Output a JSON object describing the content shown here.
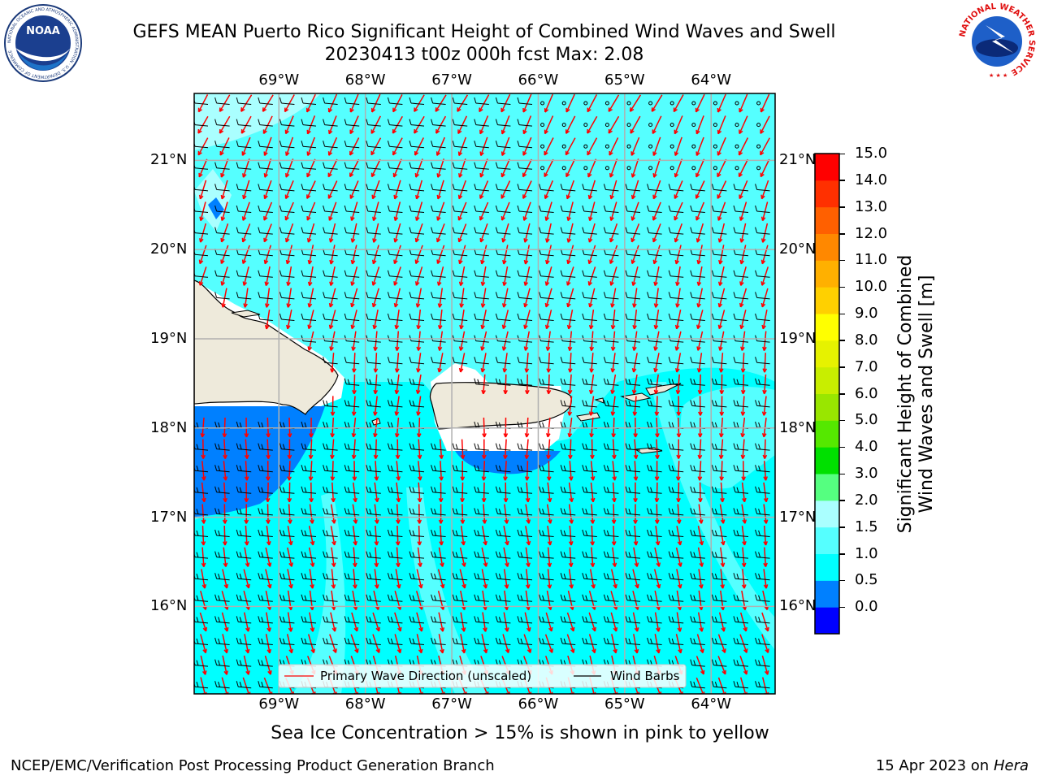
{
  "header": {
    "title_line1": "GEFS MEAN Puerto Rico Significant Height of Combined Wind Waves and Swell",
    "title_line2": "20230413 t00z 000h fcst   Max: 2.08"
  },
  "logos": {
    "noaa_text": "NOAA",
    "noaa_ring_text": "NATIONAL OCEANIC AND ATMOSPHERIC ADMINISTRATION · U.S. DEPARTMENT OF COMMERCE",
    "nws_ring_text": "NATIONAL WEATHER SERVICE"
  },
  "map": {
    "lon_labels": [
      "69°W",
      "68°W",
      "67°W",
      "66°W",
      "65°W",
      "64°W"
    ],
    "lat_labels": [
      "21°N",
      "20°N",
      "19°N",
      "18°N",
      "17°N",
      "16°N"
    ],
    "lon_range": [
      -69.98,
      -63.26
    ],
    "lat_range": [
      15.02,
      21.75
    ],
    "background_range_m": "1.5-2.0",
    "wind_barb_color": "#000000",
    "wave_arrow_color": "#ff0000"
  },
  "legend": {
    "primary_wave": "Primary Wave Direction (unscaled)",
    "wind_barbs": "Wind Barbs"
  },
  "colorbar": {
    "label_line1": "Significant Height of Combined",
    "label_line2": "Wind Waves and Swell [m]",
    "ticks": [
      "15.0",
      "14.0",
      "13.0",
      "12.0",
      "11.0",
      "10.0",
      "9.0",
      "8.0",
      "7.0",
      "6.0",
      "5.0",
      "4.0",
      "3.0",
      "2.0",
      "1.5",
      "1.0",
      "0.5",
      "0.0"
    ],
    "colors": [
      "#0000ff",
      "#0080ff",
      "#00ffff",
      "#55ffff",
      "#aaffff",
      "#55ff80",
      "#00e000",
      "#55e800",
      "#99e600",
      "#c8ee00",
      "#e6f200",
      "#ffff00",
      "#ffd000",
      "#ffb000",
      "#ff8800",
      "#ff6000",
      "#ff3000",
      "#ff0000"
    ]
  },
  "notes": {
    "sea_ice": "Sea Ice Concentration > 15% is shown in pink to yellow"
  },
  "footer": {
    "left": "NCEP/EMC/Verification Post Processing Product Generation Branch",
    "right_prefix": "15 Apr 2023 on ",
    "right_machine": "Hera"
  }
}
